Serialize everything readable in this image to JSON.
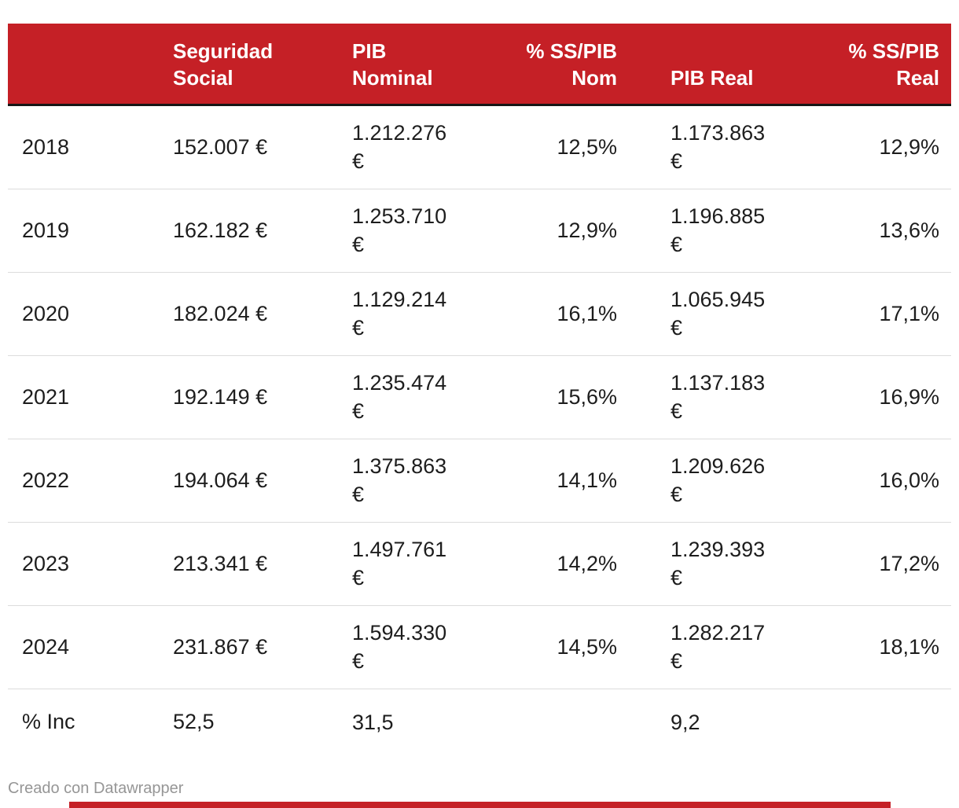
{
  "chart_data": {
    "type": "table",
    "columns": [
      {
        "label": "",
        "align": "left"
      },
      {
        "label": "Seguridad Social",
        "align": "left"
      },
      {
        "label": "PIB Nominal",
        "align": "left"
      },
      {
        "label": "% SS/PIB Nom",
        "align": "right"
      },
      {
        "label": "PIB Real",
        "align": "left"
      },
      {
        "label": "% SS/PIB Real",
        "align": "right"
      }
    ],
    "rows": [
      {
        "cells": [
          "2018",
          "152.007 €",
          "1.212.276 €",
          "12,5%",
          "1.173.863 €",
          "12,9%"
        ]
      },
      {
        "cells": [
          "2019",
          "162.182 €",
          "1.253.710 €",
          "12,9%",
          "1.196.885 €",
          "13,6%"
        ]
      },
      {
        "cells": [
          "2020",
          "182.024 €",
          "1.129.214 €",
          "16,1%",
          "1.065.945 €",
          "17,1%"
        ]
      },
      {
        "cells": [
          "2021",
          "192.149 €",
          "1.235.474 €",
          "15,6%",
          "1.137.183 €",
          "16,9%"
        ]
      },
      {
        "cells": [
          "2022",
          "194.064 €",
          "1.375.863 €",
          "14,1%",
          "1.209.626 €",
          "16,0%"
        ]
      },
      {
        "cells": [
          "2023",
          "213.341 €",
          "1.497.761 €",
          "14,2%",
          "1.239.393 €",
          "17,2%"
        ]
      },
      {
        "cells": [
          "2024",
          "231.867 €",
          "1.594.330 €",
          "14,5%",
          "1.282.217 €",
          "18,1%"
        ]
      },
      {
        "cells": [
          "% Inc",
          "52,5",
          "31,5",
          "",
          "9,2",
          ""
        ]
      }
    ]
  },
  "footer": {
    "credit": "Creado con Datawrapper"
  },
  "colors": {
    "header_bg": "#c52026",
    "header_text": "#ffffff",
    "header_divider": "#161616",
    "body_text": "#1d1d1d",
    "row_divider": "#dcdcdc",
    "credit_text": "#969696",
    "accent_bar": "#c52026"
  }
}
